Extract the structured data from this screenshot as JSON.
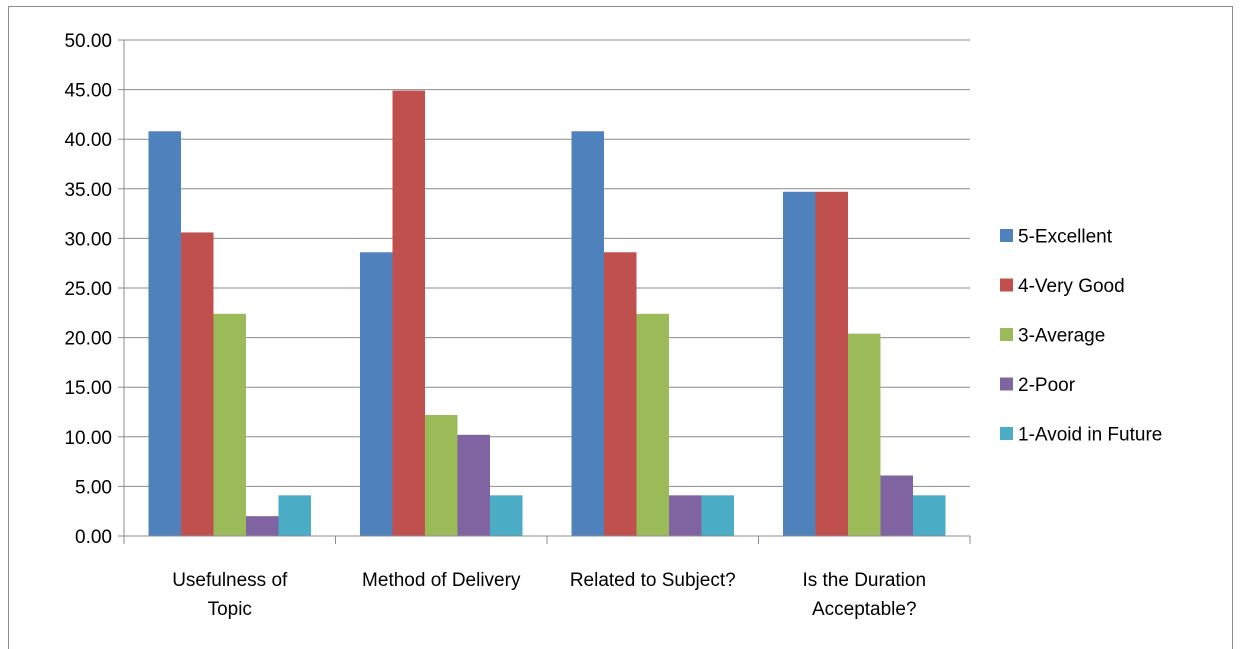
{
  "chart_data": {
    "type": "bar",
    "title": "",
    "xlabel": "",
    "ylabel": "",
    "ylim": [
      0,
      50
    ],
    "ytick_step": 5,
    "ytick_format_decimals": 2,
    "grid": "horizontal",
    "legend_position": "right",
    "categories": [
      [
        "Usefulness of",
        "Topic"
      ],
      [
        "Method of Delivery"
      ],
      [
        "Related to Subject?"
      ],
      [
        "Is the Duration",
        "Acceptable?"
      ]
    ],
    "series": [
      {
        "name": "5-Excellent",
        "color": "#4f81bd",
        "values": [
          40.8,
          28.6,
          40.8,
          34.7
        ]
      },
      {
        "name": "4-Very Good",
        "color": "#c0504d",
        "values": [
          30.6,
          44.9,
          28.6,
          34.7
        ]
      },
      {
        "name": "3-Average",
        "color": "#9bbb59",
        "values": [
          22.4,
          12.2,
          22.4,
          20.4
        ]
      },
      {
        "name": "2-Poor",
        "color": "#8064a2",
        "values": [
          2.0,
          10.2,
          4.1,
          6.1
        ]
      },
      {
        "name": "1-Avoid in Future",
        "color": "#4bacc6",
        "values": [
          4.1,
          4.1,
          4.1,
          4.1
        ]
      }
    ]
  }
}
